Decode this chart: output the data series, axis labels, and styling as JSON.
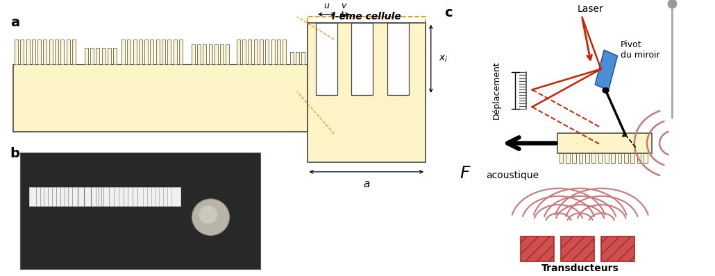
{
  "panel_a_label": "a",
  "panel_b_label": "b",
  "panel_c_label": "c",
  "cell_label": "l-ème cellule",
  "u_label": "u",
  "v_label": "v",
  "a_label": "a",
  "laser_label": "Laser",
  "pivot_label": "Pivot\ndu miroir",
  "deplacement_label": "Déplacement",
  "acoustique_label": "acoustique",
  "transducteurs_label": "Transducteurs",
  "metasurface_fill": "#FDF5C8",
  "metasurface_edge": "#444444",
  "orange_dotted": "#E8950A",
  "mirror_blue": "#4A8FD4",
  "red_color": "#CC2200",
  "pink_wave": "#C87878",
  "dark_red_trans": "#AA2222"
}
